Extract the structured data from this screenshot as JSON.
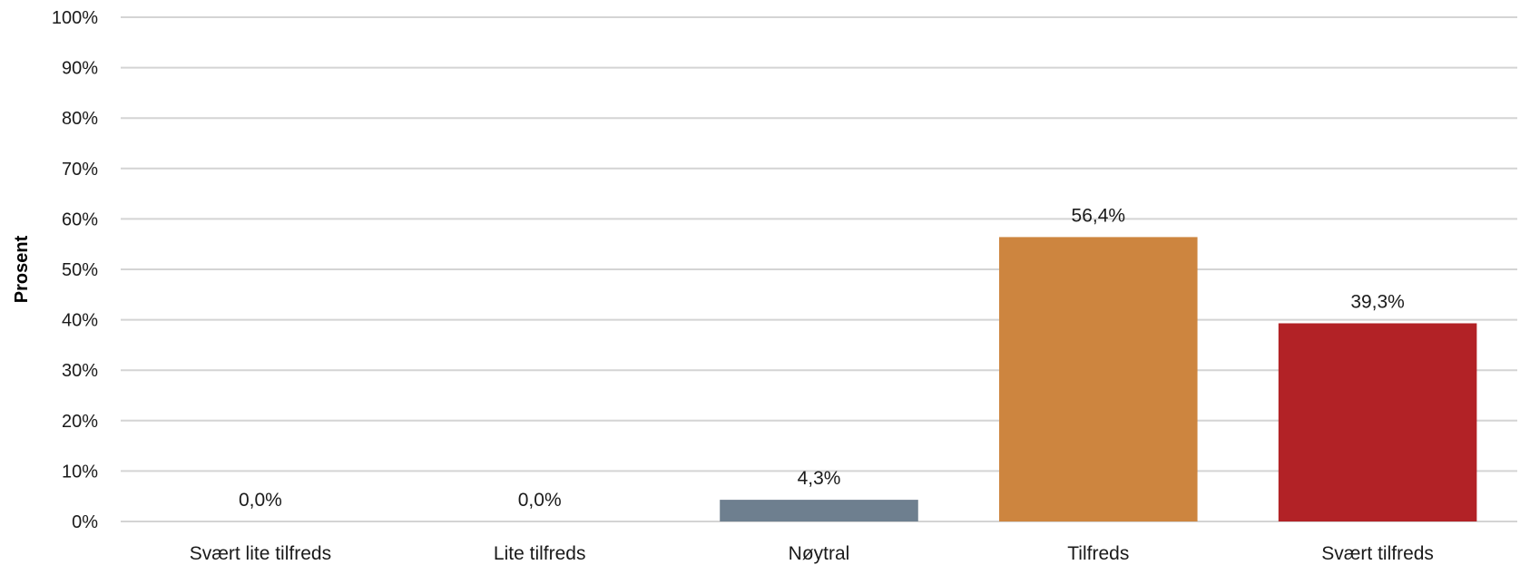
{
  "chart_data": {
    "type": "bar",
    "ylabel": "Prosent",
    "xlabel": "",
    "ylim": [
      0,
      100
    ],
    "yticks": [
      0,
      10,
      20,
      30,
      40,
      50,
      60,
      70,
      80,
      90,
      100
    ],
    "ytick_labels": [
      "0%",
      "10%",
      "20%",
      "30%",
      "40%",
      "50%",
      "60%",
      "70%",
      "80%",
      "90%",
      "100%"
    ],
    "grid": true,
    "legend": "none",
    "categories": [
      "Svært lite tilfreds",
      "Lite tilfreds",
      "Nøytral",
      "Tilfreds",
      "Svært tilfreds"
    ],
    "values": [
      0.0,
      0.0,
      4.3,
      56.4,
      39.3
    ],
    "data_labels": [
      "0,0%",
      "0,0%",
      "4,3%",
      "56,4%",
      "39,3%"
    ],
    "colors": [
      "#6e7f8f",
      "#6e7f8f",
      "#6e7f8f",
      "#cd853f",
      "#b22226"
    ]
  }
}
